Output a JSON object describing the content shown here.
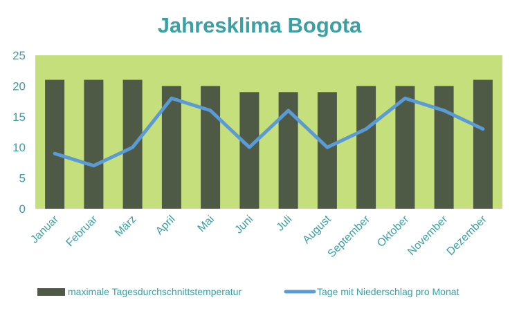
{
  "chart_data": {
    "type": "bar",
    "title": "Jahresklima  Bogota",
    "xlabel": "",
    "ylabel": "",
    "ylim": [
      0,
      25
    ],
    "yticks": [
      0,
      5,
      10,
      15,
      20,
      25
    ],
    "grid": false,
    "legend_position": "bottom",
    "categories": [
      "Januar",
      "Februar",
      "März",
      "April",
      "Mai",
      "Juni",
      "Juli",
      "August",
      "September",
      "Oktober",
      "November",
      "Dezember"
    ],
    "series": [
      {
        "name": "maximale Tagesdurchschnittstemperatur",
        "type": "bar",
        "color": "#4e5a46",
        "values": [
          21,
          21,
          21,
          20,
          20,
          19,
          19,
          19,
          20,
          20,
          20,
          21
        ]
      },
      {
        "name": "Tage mit Niederschlag pro Monat",
        "type": "line",
        "color": "#5b9bd5",
        "values": [
          9,
          7,
          10,
          18,
          16,
          10,
          16,
          10,
          13,
          18,
          16,
          13
        ]
      }
    ],
    "plot_background": "#c5df7d"
  }
}
